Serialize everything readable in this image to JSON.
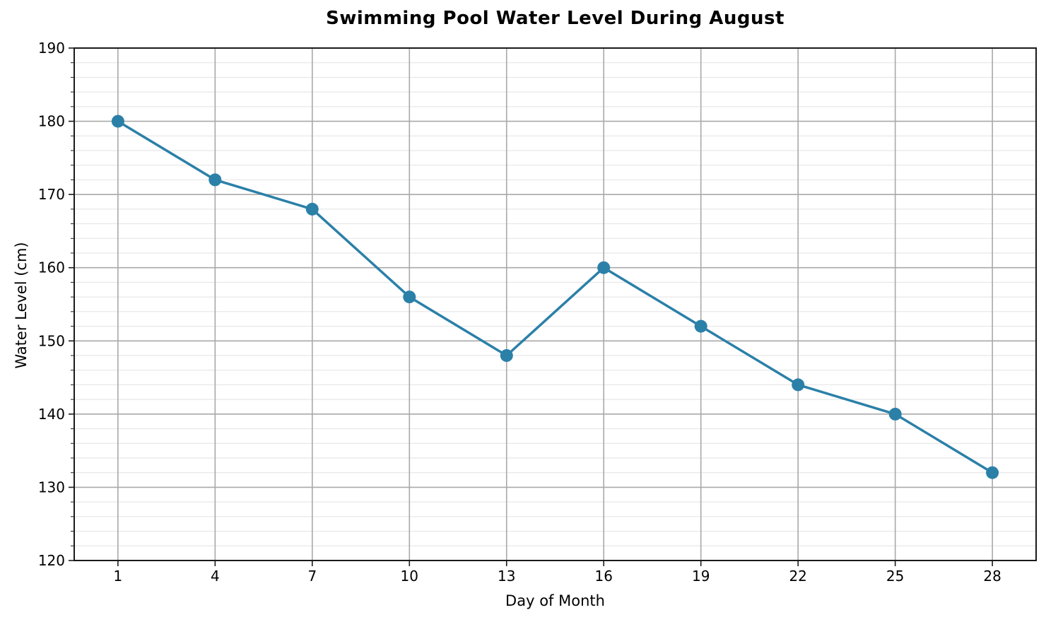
{
  "chart_data": {
    "type": "line",
    "title": "Swimming Pool Water Level During August",
    "xlabel": "Day of Month",
    "ylabel": "Water Level (cm)",
    "x": [
      1,
      4,
      7,
      10,
      13,
      16,
      19,
      22,
      25,
      28
    ],
    "values": [
      180,
      172,
      168,
      156,
      148,
      160,
      152,
      144,
      140,
      132
    ],
    "x_ticks": [
      1,
      4,
      7,
      10,
      13,
      16,
      19,
      22,
      25,
      28
    ],
    "y_ticks": [
      120,
      130,
      140,
      150,
      160,
      170,
      180,
      190
    ],
    "xlim": [
      -0.35,
      29.35
    ],
    "ylim": [
      120,
      190
    ],
    "y_minor_step": 2,
    "grid": true,
    "legend": "none",
    "colors": {
      "line": "#2b80a8",
      "marker": "#2b80a8",
      "grid_major": "#a9a9a9",
      "grid_minor": "#e2e2e2",
      "spine": "#1a1a1a",
      "text": "#000000"
    }
  }
}
